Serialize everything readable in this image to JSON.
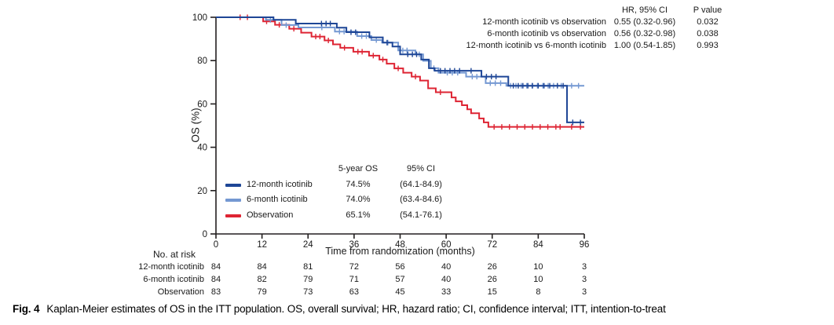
{
  "figure": {
    "caption_label": "Fig. 4",
    "caption_text": "Kaplan-Meier estimates of OS in the ITT population. OS, overall survival; HR, hazard ratio; CI, confidence interval; ITT, intention-to-treat"
  },
  "colors": {
    "dark_blue": "#1e4696",
    "light_blue": "#7498d2",
    "red": "#de2433",
    "axis": "#231f20",
    "text": "#1a1a1a"
  },
  "hr_table": {
    "col1_header": "HR, 95% CI",
    "col2_header": "P value",
    "rows": [
      {
        "label": "12-month icotinib vs observation",
        "hr_ci": "0.55 (0.32-0.96)",
        "p": "0.032"
      },
      {
        "label": "6-month icotinib vs observation",
        "hr_ci": "0.56 (0.32-0.98)",
        "p": "0.038"
      },
      {
        "label": "12-month icotinib vs 6-month icotinib",
        "hr_ci": "1.00 (0.54-1.85)",
        "p": "0.993"
      }
    ]
  },
  "legend": {
    "col1_header": "5-year OS",
    "col2_header": "95% CI",
    "rows": [
      {
        "label": "12-month icotinib",
        "os": "74.5%",
        "ci": "(64.1-84.9)",
        "color_key": "dark_blue"
      },
      {
        "label": "6-month icotinib",
        "os": "74.0%",
        "ci": "(63.4-84.6)",
        "color_key": "light_blue"
      },
      {
        "label": "Observation",
        "os": "65.1%",
        "ci": "(54.1-76.1)",
        "color_key": "red"
      }
    ]
  },
  "risk_table": {
    "title": "No. at risk",
    "rows": [
      {
        "label": "12-month icotinib",
        "counts": [
          84,
          84,
          81,
          72,
          56,
          40,
          26,
          10,
          3
        ]
      },
      {
        "label": "6-month icotinib",
        "counts": [
          84,
          82,
          79,
          71,
          57,
          40,
          26,
          10,
          3
        ]
      },
      {
        "label": "Observation",
        "counts": [
          83,
          79,
          73,
          63,
          45,
          33,
          15,
          8,
          3
        ]
      }
    ]
  },
  "chart_data": {
    "type": "line",
    "subtype": "kaplan-meier-step",
    "title": "",
    "xlabel": "Time from randomization (months)",
    "ylabel": "OS (%)",
    "xlim": [
      0,
      96
    ],
    "ylim": [
      0,
      100
    ],
    "x_ticks": [
      0,
      12,
      24,
      36,
      48,
      60,
      72,
      84,
      96
    ],
    "y_ticks": [
      0,
      20,
      40,
      60,
      80,
      100
    ],
    "grid": false,
    "legend_position": "inside-lower-left",
    "series": [
      {
        "name": "12-month icotinib",
        "color_key": "dark_blue",
        "five_year_os_pct": 74.5,
        "steps": [
          [
            0,
            100
          ],
          [
            15,
            98.8
          ],
          [
            20.8,
            97.1
          ],
          [
            31.5,
            95.2
          ],
          [
            34,
            93.1
          ],
          [
            40,
            90.7
          ],
          [
            43.5,
            88.3
          ],
          [
            46,
            86.5
          ],
          [
            48,
            82.9
          ],
          [
            53.5,
            80.5
          ],
          [
            55.5,
            76.5
          ],
          [
            57,
            75.3
          ],
          [
            69.2,
            72.6
          ],
          [
            76.2,
            68.4
          ],
          [
            91.5,
            51.5
          ]
        ],
        "censors": [
          [
            27.5,
            97.1
          ],
          [
            28.7,
            97.1
          ],
          [
            29.8,
            97.1
          ],
          [
            35.2,
            93.1
          ],
          [
            36.4,
            93.1
          ],
          [
            44.6,
            88.3
          ],
          [
            50,
            82.9
          ],
          [
            51.2,
            82.9
          ],
          [
            52.3,
            82.9
          ],
          [
            58.5,
            75.3
          ],
          [
            59.7,
            75.3
          ],
          [
            61,
            75.3
          ],
          [
            62.2,
            75.3
          ],
          [
            63.5,
            75.3
          ],
          [
            66.5,
            75.3
          ],
          [
            70.5,
            72.6
          ],
          [
            71.8,
            72.6
          ],
          [
            73,
            72.6
          ],
          [
            77.5,
            68.4
          ],
          [
            78.8,
            68.4
          ],
          [
            80,
            68.4
          ],
          [
            81.3,
            68.4
          ],
          [
            82.5,
            68.4
          ],
          [
            84,
            68.4
          ],
          [
            85.5,
            68.4
          ],
          [
            87,
            68.4
          ],
          [
            89,
            68.4
          ],
          [
            90.5,
            68.4
          ],
          [
            93,
            51.5
          ],
          [
            95,
            51.5
          ]
        ]
      },
      {
        "name": "6-month icotinib",
        "color_key": "light_blue",
        "five_year_os_pct": 74.0,
        "steps": [
          [
            0,
            100
          ],
          [
            13,
            98.8
          ],
          [
            17.1,
            96.4
          ],
          [
            21.5,
            95.3
          ],
          [
            31,
            93.4
          ],
          [
            36.8,
            91.3
          ],
          [
            40.5,
            89.5
          ],
          [
            43.3,
            88.3
          ],
          [
            47.5,
            84.7
          ],
          [
            52,
            82.9
          ],
          [
            54,
            79.9
          ],
          [
            56,
            76.5
          ],
          [
            58,
            74.4
          ],
          [
            65.2,
            72.6
          ],
          [
            70.3,
            69.6
          ],
          [
            75.7,
            68.4
          ]
        ],
        "censors": [
          [
            14.2,
            98.8
          ],
          [
            18.3,
            96.4
          ],
          [
            27.6,
            95.3
          ],
          [
            32.2,
            93.4
          ],
          [
            33.4,
            93.4
          ],
          [
            38,
            91.3
          ],
          [
            39.2,
            91.3
          ],
          [
            41.8,
            89.5
          ],
          [
            44.8,
            88.3
          ],
          [
            48.7,
            84.7
          ],
          [
            49.8,
            84.7
          ],
          [
            53,
            82.9
          ],
          [
            56.8,
            76.5
          ],
          [
            60.3,
            74.4
          ],
          [
            61.6,
            74.4
          ],
          [
            63,
            74.4
          ],
          [
            66.8,
            72.6
          ],
          [
            68,
            72.6
          ],
          [
            71.5,
            69.6
          ],
          [
            72.8,
            69.6
          ],
          [
            74.2,
            69.6
          ],
          [
            76.8,
            68.4
          ],
          [
            78.2,
            68.4
          ],
          [
            79.6,
            68.4
          ],
          [
            81,
            68.4
          ],
          [
            82.4,
            68.4
          ],
          [
            83.8,
            68.4
          ],
          [
            85.2,
            68.4
          ],
          [
            86.6,
            68.4
          ],
          [
            88,
            68.4
          ],
          [
            90,
            68.4
          ],
          [
            92.7,
            68.4
          ],
          [
            94.5,
            68.4
          ]
        ]
      },
      {
        "name": "Observation",
        "color_key": "red",
        "five_year_os_pct": 65.1,
        "steps": [
          [
            0,
            100
          ],
          [
            12.3,
            98.1
          ],
          [
            15.4,
            96.5
          ],
          [
            19.1,
            94.7
          ],
          [
            22.2,
            92.9
          ],
          [
            24.9,
            91.1
          ],
          [
            28.3,
            89.3
          ],
          [
            30.5,
            87.5
          ],
          [
            32.4,
            85.9
          ],
          [
            35.8,
            84.1
          ],
          [
            39.9,
            82.3
          ],
          [
            42.6,
            80.5
          ],
          [
            44.5,
            78.6
          ],
          [
            46.5,
            76.4
          ],
          [
            48.8,
            74.4
          ],
          [
            51,
            72.6
          ],
          [
            53.2,
            70.8
          ],
          [
            55.3,
            67.2
          ],
          [
            57.3,
            65.4
          ],
          [
            61.4,
            63.0
          ],
          [
            62.5,
            61.2
          ],
          [
            64.1,
            59.4
          ],
          [
            65.5,
            57.5
          ],
          [
            66.5,
            55.7
          ],
          [
            68.6,
            53.3
          ],
          [
            69.8,
            51.5
          ],
          [
            71,
            49.4
          ]
        ],
        "censors": [
          [
            6.3,
            100
          ],
          [
            8.2,
            100
          ],
          [
            13.2,
            98.1
          ],
          [
            16.5,
            96.5
          ],
          [
            20.3,
            94.7
          ],
          [
            26,
            91.1
          ],
          [
            27.1,
            91.1
          ],
          [
            29.3,
            89.3
          ],
          [
            33.5,
            85.9
          ],
          [
            37,
            84.1
          ],
          [
            38.1,
            84.1
          ],
          [
            41,
            82.3
          ],
          [
            43.5,
            80.5
          ],
          [
            47.5,
            76.4
          ],
          [
            52,
            72.6
          ],
          [
            58.5,
            65.4
          ],
          [
            72.5,
            49.4
          ],
          [
            74.5,
            49.4
          ],
          [
            76.5,
            49.4
          ],
          [
            78.5,
            49.4
          ],
          [
            80.5,
            49.4
          ],
          [
            82.5,
            49.4
          ],
          [
            84.5,
            49.4
          ],
          [
            86.5,
            49.4
          ],
          [
            88.6,
            49.4
          ],
          [
            89.7,
            49.4
          ],
          [
            92.7,
            49.4
          ],
          [
            95,
            49.4
          ]
        ]
      }
    ]
  }
}
